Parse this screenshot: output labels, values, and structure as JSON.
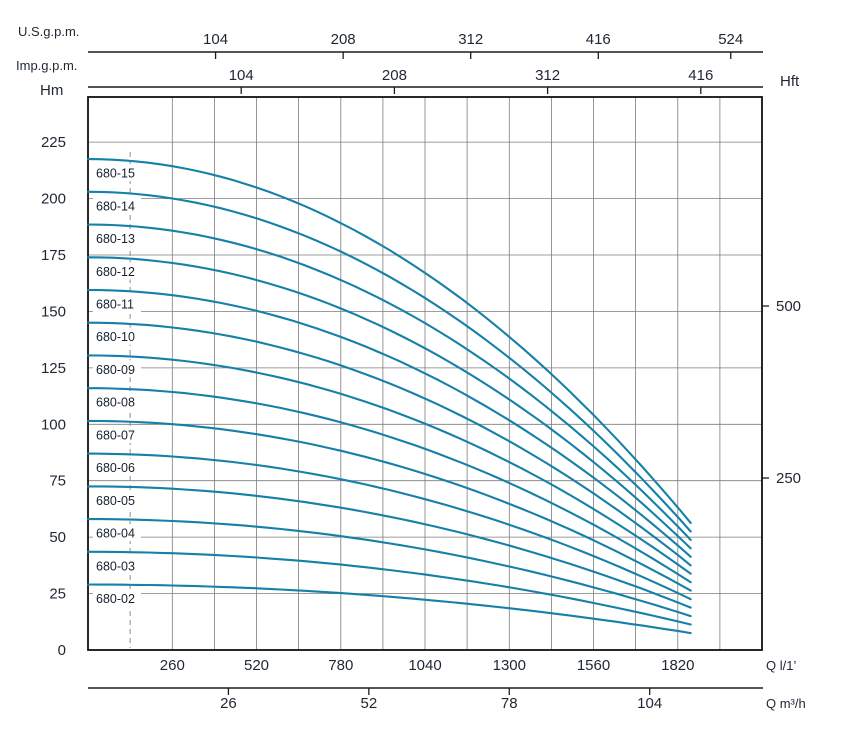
{
  "page": {
    "background": "#ffffff"
  },
  "chart_data": {
    "type": "line",
    "title": "",
    "description": "Multistage pump performance curves: head vs flow for models 680-02 through 680-15",
    "legend_position": "inline-labels-left",
    "grid": true,
    "colors": {
      "curve": "#1580a8",
      "text": "#1f2733",
      "grid": "#7d7d7d",
      "axis": "#1c1c1c"
    },
    "axes": {
      "us_gpm": {
        "label": "U.S.g.p.m.",
        "ticks": [
          104,
          208,
          312,
          416,
          524
        ],
        "lpm_per_unit": 3.7854
      },
      "imp_gpm": {
        "label": "Imp.g.p.m.",
        "ticks": [
          104,
          208,
          312,
          416
        ],
        "lpm_per_unit": 4.5461
      },
      "head_m": {
        "label": "Hm",
        "ticks": [
          0,
          25,
          50,
          75,
          100,
          125,
          150,
          175,
          200,
          225
        ],
        "max": 245
      },
      "head_ft": {
        "label": "Hft",
        "ticks": [
          250,
          500
        ],
        "m_per_unit": 0.3048
      },
      "flow_lpm": {
        "label": "Q l/1’",
        "ticks": [
          260,
          520,
          780,
          1040,
          1300,
          1560,
          1820
        ],
        "max": 2080
      },
      "flow_m3h": {
        "label": "Q m³/h",
        "ticks": [
          26,
          52,
          78,
          104
        ],
        "lpm_per_unit": 16.667
      }
    },
    "min_flow_line_lpm": 130,
    "model": "h(q) = h0 - (h0 - h_end) * (q / q_end)^2",
    "series": [
      {
        "name": "680-15",
        "stages": 15,
        "h0_m": 217.5,
        "h_end_m": 56.3,
        "q_start_lpm": 0,
        "q_end_lpm": 1860
      },
      {
        "name": "680-14",
        "stages": 14,
        "h0_m": 203.0,
        "h_end_m": 52.5,
        "q_start_lpm": 0,
        "q_end_lpm": 1860
      },
      {
        "name": "680-13",
        "stages": 13,
        "h0_m": 188.5,
        "h_end_m": 48.8,
        "q_start_lpm": 0,
        "q_end_lpm": 1860
      },
      {
        "name": "680-12",
        "stages": 12,
        "h0_m": 174.0,
        "h_end_m": 45.0,
        "q_start_lpm": 0,
        "q_end_lpm": 1860
      },
      {
        "name": "680-11",
        "stages": 11,
        "h0_m": 159.5,
        "h_end_m": 41.3,
        "q_start_lpm": 0,
        "q_end_lpm": 1860
      },
      {
        "name": "680-10",
        "stages": 10,
        "h0_m": 145.0,
        "h_end_m": 37.5,
        "q_start_lpm": 0,
        "q_end_lpm": 1860
      },
      {
        "name": "680-09",
        "stages": 9,
        "h0_m": 130.5,
        "h_end_m": 33.8,
        "q_start_lpm": 0,
        "q_end_lpm": 1860
      },
      {
        "name": "680-08",
        "stages": 8,
        "h0_m": 116.0,
        "h_end_m": 30.0,
        "q_start_lpm": 0,
        "q_end_lpm": 1860
      },
      {
        "name": "680-07",
        "stages": 7,
        "h0_m": 101.5,
        "h_end_m": 26.3,
        "q_start_lpm": 0,
        "q_end_lpm": 1860
      },
      {
        "name": "680-06",
        "stages": 6,
        "h0_m": 87.0,
        "h_end_m": 22.5,
        "q_start_lpm": 0,
        "q_end_lpm": 1860
      },
      {
        "name": "680-05",
        "stages": 5,
        "h0_m": 72.5,
        "h_end_m": 18.8,
        "q_start_lpm": 0,
        "q_end_lpm": 1860
      },
      {
        "name": "680-04",
        "stages": 4,
        "h0_m": 58.0,
        "h_end_m": 15.0,
        "q_start_lpm": 0,
        "q_end_lpm": 1860
      },
      {
        "name": "680-03",
        "stages": 3,
        "h0_m": 43.5,
        "h_end_m": 11.3,
        "q_start_lpm": 0,
        "q_end_lpm": 1860
      },
      {
        "name": "680-02",
        "stages": 2,
        "h0_m": 29.0,
        "h_end_m": 7.5,
        "q_start_lpm": 0,
        "q_end_lpm": 1860
      }
    ]
  }
}
